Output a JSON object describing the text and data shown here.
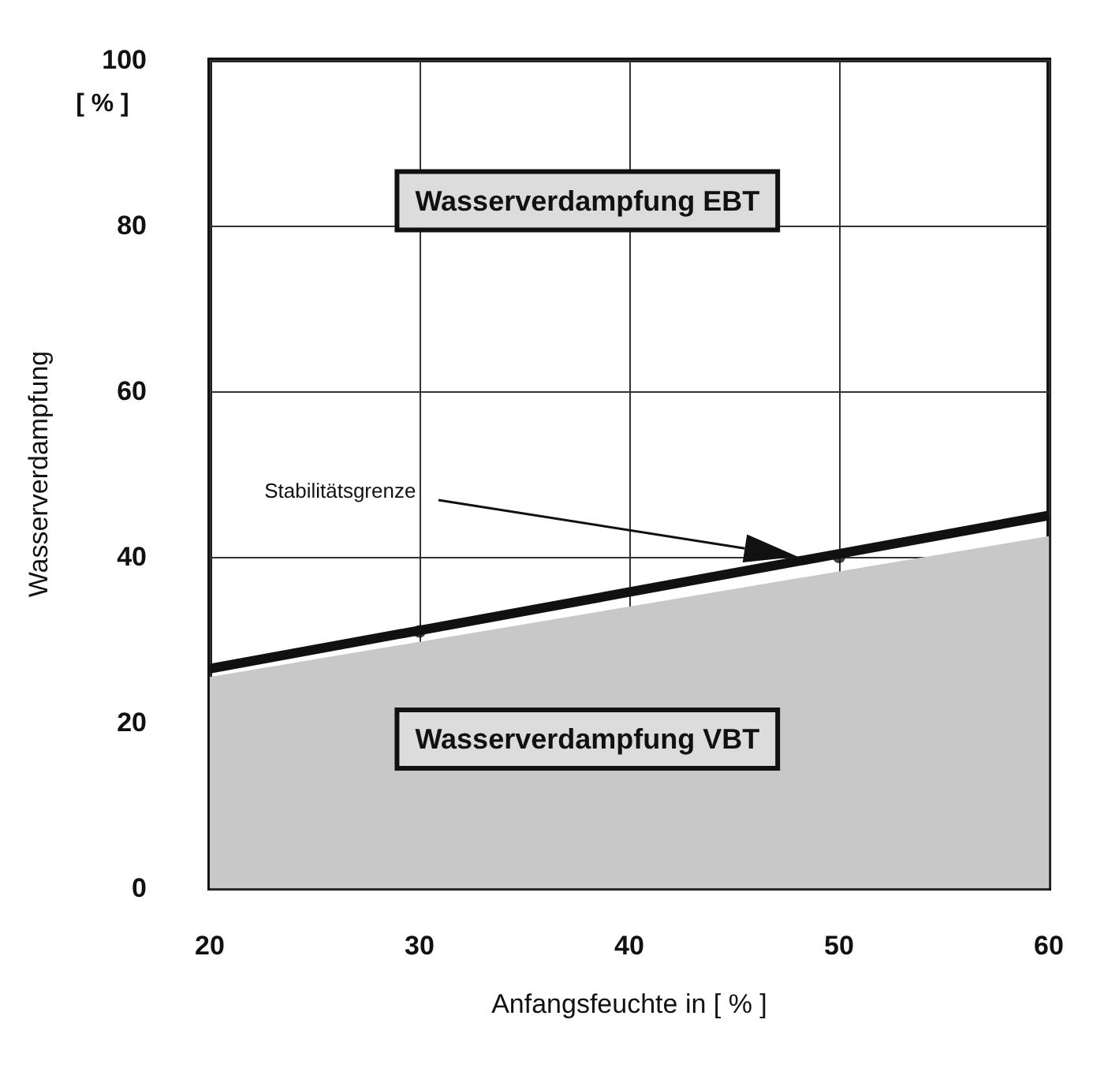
{
  "chart_data": {
    "type": "line",
    "xlabel": "Anfangsfeuchte in [ % ]",
    "ylabel": "Wasserverdampfung",
    "xlim": [
      20,
      60
    ],
    "xticks": [
      20,
      30,
      40,
      50,
      60
    ],
    "ylim": [
      0,
      100
    ],
    "yticks": [
      0,
      20,
      40,
      60,
      80,
      100
    ],
    "grid": true,
    "series": [
      {
        "type": "area",
        "color": "#c8c8c8",
        "x": [
          20,
          60
        ],
        "values": [
          25.5,
          42.5
        ]
      },
      {
        "color": "#111111",
        "x": [
          20,
          60
        ],
        "values": [
          26.5,
          45
        ],
        "marker": "none"
      },
      {
        "type": "scatter",
        "color": "#111111",
        "x": [
          30,
          50
        ],
        "values": [
          31,
          40
        ],
        "marker": "circle"
      }
    ],
    "annotations": [
      "[ % ]",
      "Wasserverdampfung EBT",
      "Wasserverdampfung VBT",
      "Stabilitätsgrenze"
    ]
  }
}
